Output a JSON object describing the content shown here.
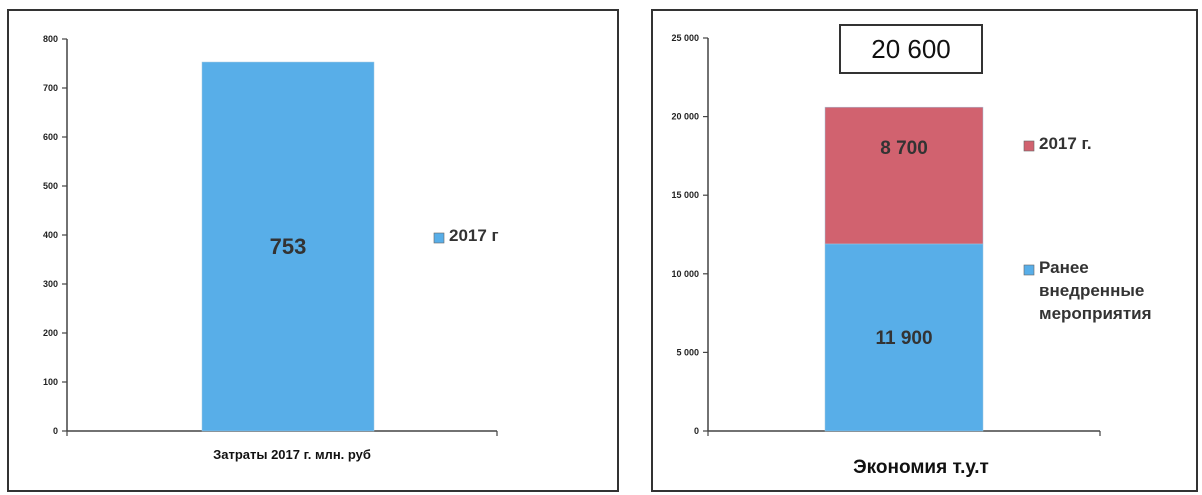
{
  "chart_data": [
    {
      "type": "bar",
      "categories": [
        "Затраты 2017 г. млн. руб"
      ],
      "series": [
        {
          "name": "2017 г",
          "values": [
            753
          ],
          "color": "#58aee8"
        }
      ],
      "data_labels": [
        "753"
      ],
      "ylim": [
        0,
        800
      ],
      "yticks": [
        0,
        100,
        200,
        300,
        400,
        500,
        600,
        700,
        800
      ],
      "ytick_labels": [
        "0",
        "100",
        "200",
        "300",
        "400",
        "500",
        "600",
        "700",
        "800"
      ],
      "legend_position": "right",
      "grid": false
    },
    {
      "type": "bar",
      "stacked": true,
      "categories": [
        "Экономия т.у.т"
      ],
      "series": [
        {
          "name": "Ранее внедренные мероприятия",
          "values": [
            11900
          ],
          "color": "#58aee8"
        },
        {
          "name": "2017 г.",
          "values": [
            8700
          ],
          "color": "#d1626f"
        }
      ],
      "data_labels": [
        "11 900",
        "8 700"
      ],
      "total_label": "20 600",
      "ylim": [
        0,
        25000
      ],
      "yticks": [
        0,
        5000,
        10000,
        15000,
        20000,
        25000
      ],
      "ytick_labels": [
        "0",
        "5 000",
        "10 000",
        "15 000",
        "20 000",
        "25 000"
      ],
      "legend_position": "right",
      "grid": false
    }
  ]
}
